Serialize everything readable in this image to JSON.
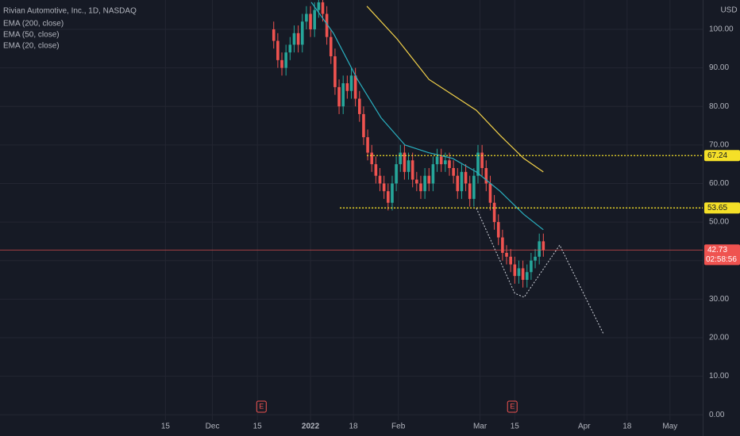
{
  "chart_data": {
    "type": "candlestick",
    "title": "Rivian Automotive, Inc., 1D, NASDAQ",
    "currency": "USD",
    "x": [
      -9,
      -8,
      -7,
      -6,
      -5,
      -4,
      -3,
      -2,
      -1,
      0,
      1,
      2,
      3,
      4,
      5,
      6,
      7,
      8,
      9,
      10,
      11,
      12,
      13,
      14,
      15,
      16,
      17,
      18,
      19,
      20,
      21,
      22,
      23,
      24,
      25,
      26,
      27,
      28,
      29,
      30,
      31,
      32,
      33,
      34,
      35,
      36,
      37,
      38,
      39,
      40,
      41,
      42,
      43,
      44,
      45,
      46,
      47,
      48,
      49,
      50,
      51,
      52,
      53,
      54,
      55,
      56,
      57
    ],
    "open": [
      100,
      97,
      92,
      90,
      94,
      96,
      99,
      96,
      102,
      104,
      100,
      105,
      107,
      104,
      98,
      93,
      85,
      80,
      86,
      84,
      88,
      82,
      78,
      72,
      68,
      65,
      62,
      60,
      58,
      55,
      60,
      65,
      68,
      63,
      66,
      61,
      60,
      58,
      62,
      60,
      65,
      67,
      65,
      66,
      64,
      62,
      58,
      63,
      60,
      56,
      62,
      68,
      64,
      60,
      55,
      50,
      46,
      42,
      41,
      39,
      36,
      38,
      35,
      37,
      40,
      41,
      45
    ],
    "high": [
      102,
      99,
      94,
      96,
      98,
      101,
      101,
      104,
      106,
      106,
      107,
      109,
      109,
      106,
      100,
      95,
      87,
      88,
      88,
      90,
      90,
      84,
      80,
      74,
      70,
      67,
      64,
      62,
      60,
      62,
      67,
      70,
      70,
      68,
      68,
      63,
      62,
      64,
      64,
      67,
      69,
      69,
      68,
      68,
      66,
      64,
      65,
      65,
      62,
      64,
      70,
      70,
      66,
      62,
      57,
      52,
      48,
      44,
      43,
      41,
      40,
      40,
      39,
      42,
      43,
      47,
      47
    ],
    "low": [
      95,
      90,
      88,
      88,
      92,
      94,
      94,
      94,
      100,
      98,
      98,
      103,
      102,
      96,
      91,
      83,
      78,
      78,
      82,
      82,
      80,
      76,
      70,
      66,
      63,
      60,
      58,
      56,
      53,
      53,
      58,
      63,
      61,
      61,
      59,
      58,
      56,
      56,
      58,
      58,
      63,
      63,
      63,
      62,
      60,
      56,
      56,
      58,
      54,
      54,
      60,
      62,
      58,
      53,
      48,
      44,
      40,
      39,
      37,
      34,
      34,
      33,
      33,
      35,
      38,
      39,
      41
    ],
    "close": [
      97,
      92,
      90,
      94,
      96,
      99,
      96,
      102,
      104,
      100,
      105,
      107,
      104,
      98,
      93,
      85,
      80,
      86,
      84,
      88,
      82,
      78,
      72,
      68,
      65,
      62,
      60,
      58,
      55,
      60,
      65,
      68,
      63,
      66,
      61,
      60,
      58,
      62,
      60,
      65,
      67,
      65,
      66,
      64,
      62,
      58,
      63,
      60,
      56,
      62,
      68,
      64,
      60,
      55,
      50,
      46,
      42,
      41,
      39,
      36,
      38,
      35,
      37,
      40,
      41,
      45,
      42.73
    ],
    "up_color": "#26a69a",
    "down_color": "#ef5350",
    "indicators": [
      {
        "name": "EMA (200, close)"
      },
      {
        "name": "EMA (50, close)",
        "color": "#f2d14a",
        "x": [
          13.8,
          21.2,
          29,
          34.8,
          40.6,
          46.4,
          52.2,
          57
        ],
        "values": [
          106,
          97.5,
          87,
          83,
          79,
          72.5,
          66.5,
          63
        ]
      },
      {
        "name": "EMA (20, close)",
        "color": "#2ab0c0",
        "x": [
          0.2,
          5.6,
          11.5,
          17.3,
          23.1,
          28.9,
          34.8,
          40.6,
          46.4,
          52.2,
          57
        ],
        "values": [
          107,
          99,
          87,
          77,
          70,
          68,
          66.5,
          63,
          58,
          52,
          48
        ]
      }
    ],
    "levels": [
      {
        "value": 67.24,
        "start": 13.8,
        "color": "#f5e028"
      },
      {
        "value": 53.65,
        "start": 7.2,
        "color": "#f5e028"
      }
    ],
    "last_price": {
      "value": 42.73,
      "countdown": "02:58:56",
      "color": "#ef5350"
    },
    "projection": {
      "x": [
        40.6,
        50,
        52.3,
        61,
        71.7
      ],
      "y": [
        53.6,
        31.5,
        30.5,
        44,
        21
      ]
    },
    "earnings": {
      "label": "E",
      "x": [
        -12,
        49.4
      ]
    },
    "xlim": [
      -76,
      96
    ],
    "ylim": [
      -1.4,
      107.6
    ],
    "xticks": [
      {
        "value": -35.5,
        "label": "15"
      },
      {
        "value": -24,
        "label": "Dec"
      },
      {
        "value": -13,
        "label": "15"
      },
      {
        "value": 0,
        "label": "2022"
      },
      {
        "value": 10.5,
        "label": "18"
      },
      {
        "value": 21.5,
        "label": "Feb"
      },
      {
        "value": 41.5,
        "label": "Mar"
      },
      {
        "value": 50,
        "label": "15"
      },
      {
        "value": 67,
        "label": "Apr"
      },
      {
        "value": 77.5,
        "label": "18"
      },
      {
        "value": 88,
        "label": "May"
      }
    ],
    "yticks": [
      {
        "value": 0,
        "label": "0.00"
      },
      {
        "value": 10,
        "label": "10.00"
      },
      {
        "value": 20,
        "label": "20.00"
      },
      {
        "value": 30,
        "label": "30.00"
      },
      {
        "value": 40,
        "label": "40.00"
      },
      {
        "value": 50,
        "label": "50.00"
      },
      {
        "value": 60,
        "label": "60.00"
      },
      {
        "value": 70,
        "label": "70.00"
      },
      {
        "value": 80,
        "label": "80.00"
      },
      {
        "value": 90,
        "label": "90.00"
      },
      {
        "value": 100,
        "label": "100.00"
      }
    ],
    "grid": true
  }
}
